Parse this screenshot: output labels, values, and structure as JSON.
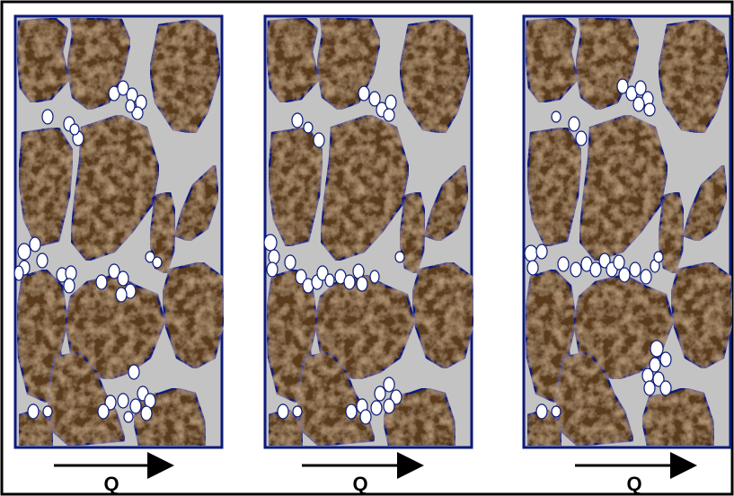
{
  "figure": {
    "colors": {
      "frame_border": "#000000",
      "panel_border": "#0b1a7a",
      "pore_fill": "#c3c3c3",
      "grain_fill": "#5a3a1e",
      "grain_texture_light": "#8a6a42",
      "grain_texture_dark": "#3a2412",
      "grain_outline": "#0b1a7a",
      "particle_fill": "#ffffff",
      "particle_outline": "#0b1a7a",
      "arrow_color": "#000000"
    },
    "panels": [
      {
        "name": "panel-1",
        "arrow_label": "Q"
      },
      {
        "name": "panel-2",
        "arrow_label": "Q"
      },
      {
        "name": "panel-3",
        "arrow_label": "Q"
      }
    ]
  }
}
